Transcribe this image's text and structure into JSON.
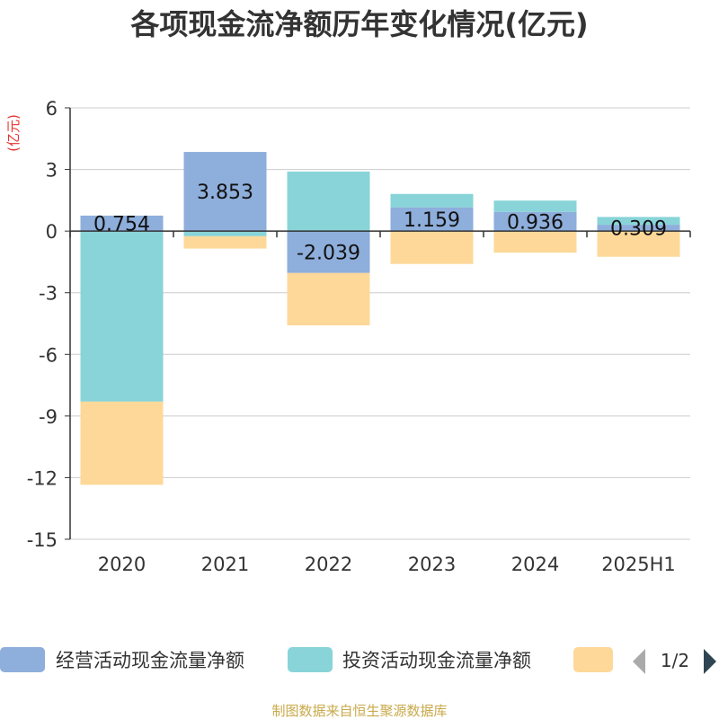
{
  "chart_data": {
    "type": "bar",
    "stacked": true,
    "title": "各项现金流净额历年变化情况(亿元)",
    "ylabel": "(亿元)",
    "ylim": [
      -15,
      6
    ],
    "yticks": [
      6,
      3,
      0,
      -3,
      -6,
      -9,
      -12,
      -15
    ],
    "grid": true,
    "legend_position": "bottom",
    "categories": [
      "2020",
      "2021",
      "2022",
      "2023",
      "2024",
      "2025H1"
    ],
    "series": [
      {
        "name": "经营活动现金流量净额",
        "color": "#8eaedb",
        "values": [
          0.754,
          3.853,
          -2.039,
          1.159,
          0.936,
          0.309
        ],
        "labels": [
          "0.754",
          "3.853",
          "-2.039",
          "1.159",
          "0.936",
          "0.309"
        ]
      },
      {
        "name": "投资活动现金流量净额",
        "color": "#88d4d8",
        "values": [
          -8.3,
          -0.25,
          2.9,
          0.65,
          0.55,
          0.38
        ]
      },
      {
        "name": "",
        "color": "#fdd899",
        "values": [
          -4.05,
          -0.6,
          -2.55,
          -1.6,
          -1.05,
          -1.25
        ]
      }
    ],
    "legend_page": "1/2",
    "source": "制图数据来自恒生聚源数据库"
  }
}
